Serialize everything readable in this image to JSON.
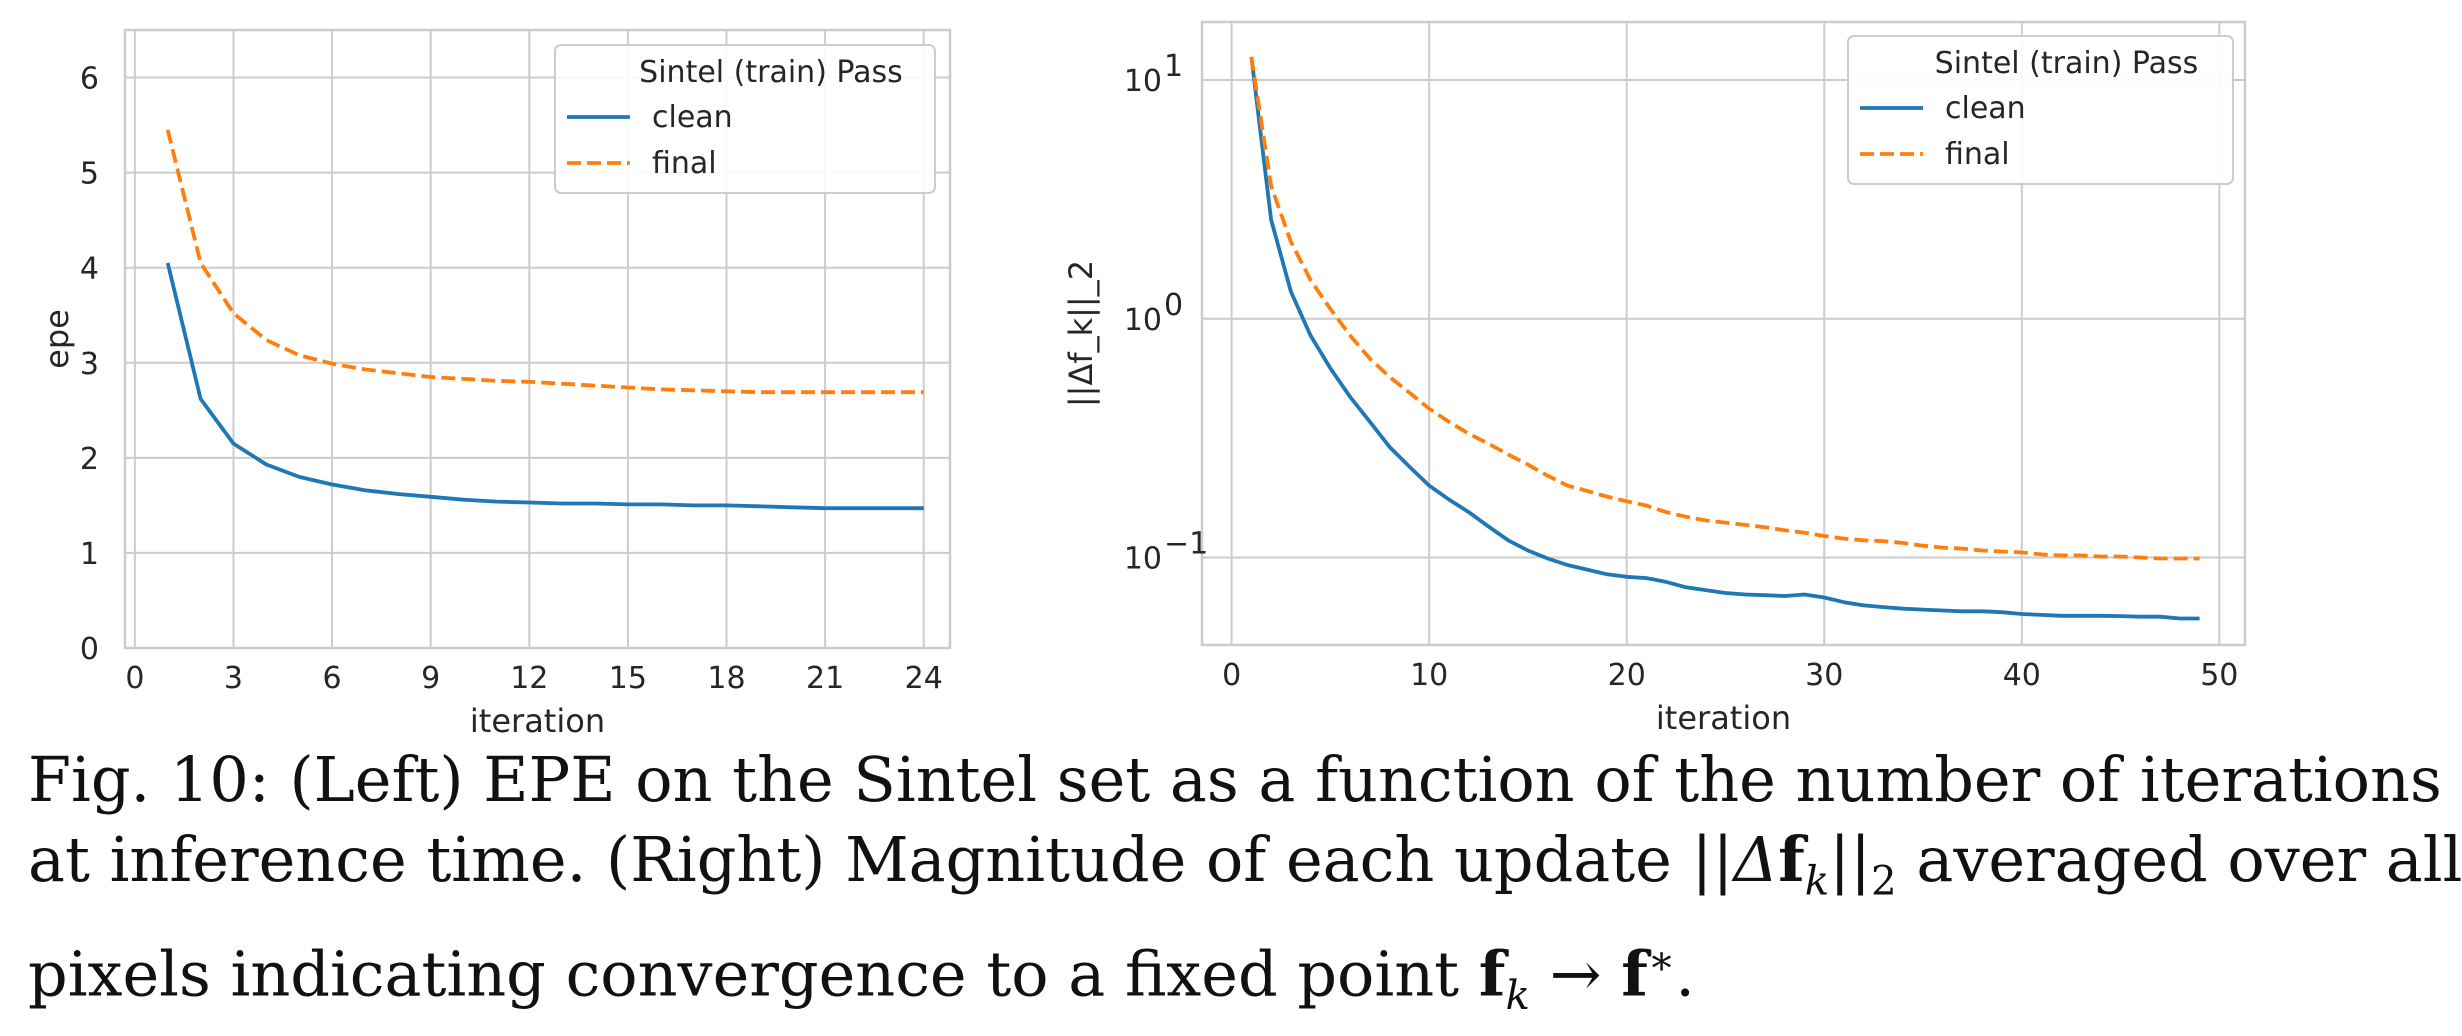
{
  "chart_data": [
    {
      "type": "line",
      "xlabel": "iteration",
      "ylabel": "epe",
      "xlim": [
        -0.3,
        24.8
      ],
      "ylim": [
        0,
        6.5
      ],
      "xticks": [
        0,
        3,
        6,
        9,
        12,
        15,
        18,
        21,
        24
      ],
      "yticks": [
        0,
        1,
        2,
        3,
        4,
        5,
        6
      ],
      "log_y": false,
      "grid": true,
      "legend": {
        "title": "Sintel (train) Pass",
        "placement": "top-right"
      },
      "series": [
        {
          "name": "clean",
          "color": "#1f77b4",
          "dash": "solid",
          "x": [
            1,
            2,
            3,
            4,
            5,
            6,
            7,
            8,
            9,
            10,
            11,
            12,
            13,
            14,
            15,
            16,
            17,
            18,
            19,
            20,
            21,
            22,
            23,
            24
          ],
          "y": [
            4.05,
            2.62,
            2.15,
            1.93,
            1.8,
            1.72,
            1.66,
            1.62,
            1.59,
            1.56,
            1.54,
            1.53,
            1.52,
            1.52,
            1.51,
            1.51,
            1.5,
            1.5,
            1.49,
            1.48,
            1.47,
            1.47,
            1.47,
            1.47
          ]
        },
        {
          "name": "final",
          "color": "#ff7f0e",
          "dash": "dashed",
          "x": [
            1,
            2,
            3,
            4,
            5,
            6,
            7,
            8,
            9,
            10,
            11,
            12,
            13,
            14,
            15,
            16,
            17,
            18,
            19,
            20,
            21,
            22,
            23,
            24
          ],
          "y": [
            5.45,
            4.05,
            3.52,
            3.24,
            3.08,
            2.99,
            2.93,
            2.89,
            2.85,
            2.83,
            2.81,
            2.8,
            2.78,
            2.76,
            2.74,
            2.72,
            2.71,
            2.7,
            2.69,
            2.69,
            2.69,
            2.69,
            2.69,
            2.69
          ]
        }
      ]
    },
    {
      "type": "line",
      "xlabel": "iteration",
      "ylabel": "||Δf_k||_2",
      "xlim": [
        -1.5,
        51.3
      ],
      "ylim": [
        0.043,
        17.5
      ],
      "xticks": [
        0,
        10,
        20,
        30,
        40,
        50
      ],
      "yticks": [
        0.1,
        1,
        10
      ],
      "ytick_labels": [
        "10",
        "10",
        "10"
      ],
      "ytick_exponents": [
        "−1",
        "0",
        "1"
      ],
      "log_y": true,
      "grid": true,
      "legend": {
        "title": "Sintel (train) Pass",
        "placement": "top-right"
      },
      "series": [
        {
          "name": "clean",
          "color": "#1f77b4",
          "dash": "solid",
          "x": [
            1,
            2,
            3,
            4,
            5,
            6,
            7,
            8,
            9,
            10,
            11,
            12,
            13,
            14,
            15,
            16,
            17,
            18,
            19,
            20,
            21,
            22,
            23,
            24,
            25,
            26,
            27,
            28,
            29,
            30,
            31,
            32,
            33,
            34,
            35,
            36,
            37,
            38,
            39,
            40,
            41,
            42,
            43,
            44,
            45,
            46,
            47,
            48,
            49
          ],
          "y": [
            12.5,
            2.6,
            1.3,
            0.85,
            0.62,
            0.47,
            0.37,
            0.29,
            0.24,
            0.2,
            0.175,
            0.155,
            0.135,
            0.118,
            0.107,
            0.099,
            0.093,
            0.089,
            0.085,
            0.083,
            0.082,
            0.079,
            0.075,
            0.073,
            0.071,
            0.07,
            0.0695,
            0.069,
            0.07,
            0.068,
            0.065,
            0.063,
            0.062,
            0.061,
            0.0605,
            0.06,
            0.0595,
            0.0595,
            0.059,
            0.058,
            0.0575,
            0.057,
            0.057,
            0.057,
            0.0568,
            0.0565,
            0.0565,
            0.0555,
            0.0555
          ]
        },
        {
          "name": "final",
          "color": "#ff7f0e",
          "dash": "dashed",
          "x": [
            1,
            2,
            3,
            4,
            5,
            6,
            7,
            8,
            9,
            10,
            11,
            12,
            13,
            14,
            15,
            16,
            17,
            18,
            19,
            20,
            21,
            22,
            23,
            24,
            25,
            26,
            27,
            28,
            29,
            30,
            31,
            32,
            33,
            34,
            35,
            36,
            37,
            38,
            39,
            40,
            41,
            42,
            43,
            44,
            45,
            46,
            47,
            48,
            49
          ],
          "y": [
            12.5,
            3.6,
            2.1,
            1.45,
            1.1,
            0.85,
            0.68,
            0.57,
            0.49,
            0.42,
            0.37,
            0.33,
            0.3,
            0.27,
            0.245,
            0.22,
            0.2,
            0.19,
            0.18,
            0.172,
            0.165,
            0.155,
            0.148,
            0.143,
            0.14,
            0.137,
            0.134,
            0.13,
            0.127,
            0.123,
            0.12,
            0.118,
            0.117,
            0.115,
            0.112,
            0.11,
            0.109,
            0.107,
            0.106,
            0.105,
            0.103,
            0.102,
            0.102,
            0.101,
            0.101,
            0.1,
            0.099,
            0.099,
            0.099
          ]
        }
      ]
    }
  ],
  "caption": {
    "line1": "Fig. 10: (Left) EPE on the Sintel set as a function of the number of iterations",
    "line2a": "at inference time. (Right) Magnitude of each update ||",
    "line2_delta": "Δ",
    "line2_f": "f",
    "line2_k": "k",
    "line2_close": "||",
    "line2_2": "2",
    "line2b": " averaged over all",
    "line3a": "pixels indicating convergence to a fixed point ",
    "line3_f1": "f",
    "line3_k": "k",
    "line3_arrow": " → ",
    "line3_f2": "f",
    "line3_star": "∗",
    "line3_end": "."
  }
}
